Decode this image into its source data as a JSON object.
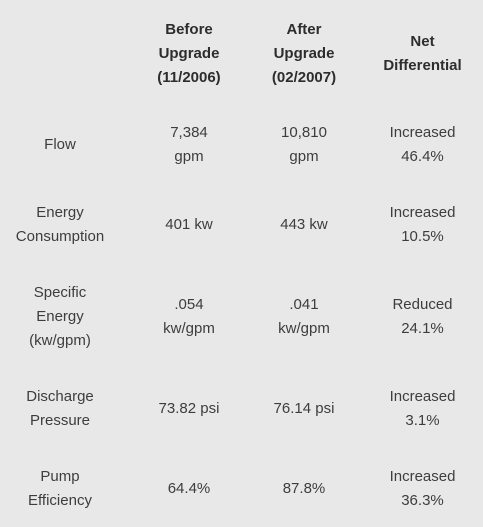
{
  "headers": {
    "metric": "",
    "before": "Before\nUpgrade\n(11/2006)",
    "after": "After\nUpgrade\n(02/2007)",
    "net": "Net\nDifferential"
  },
  "rows": [
    {
      "metric": "Flow",
      "before": "7,384\ngpm",
      "after": "10,810\ngpm",
      "net": "Increased\n46.4%"
    },
    {
      "metric": "Energy\nConsumption",
      "before": "401 kw",
      "after": "443 kw",
      "net": "Increased\n10.5%"
    },
    {
      "metric": "Specific\nEnergy\n(kw/gpm)",
      "before": ".054\nkw/gpm",
      "after": ".041\nkw/gpm",
      "net": "Reduced\n24.1%"
    },
    {
      "metric": "Discharge\nPressure",
      "before": "73.82 psi",
      "after": "76.14 psi",
      "net": "Increased\n3.1%"
    },
    {
      "metric": "Pump\nEfficiency",
      "before": "64.4%",
      "after": "87.8%",
      "net": "Increased\n36.3%"
    }
  ]
}
